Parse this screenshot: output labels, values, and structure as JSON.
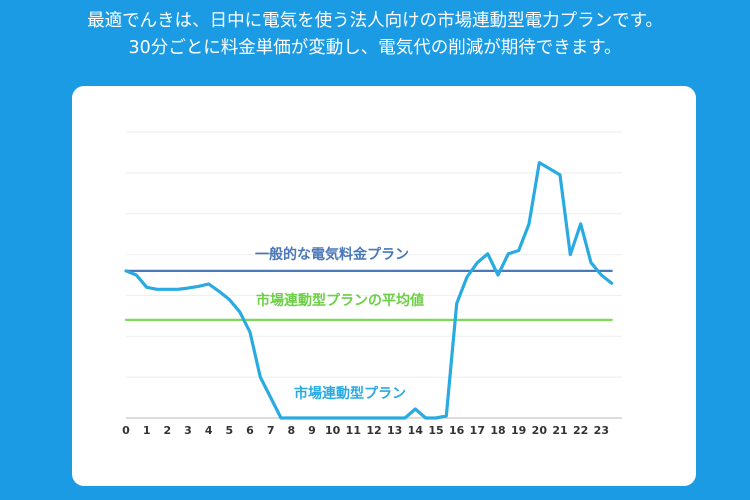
{
  "headline": {
    "line1": "最適でんきは、日中に電気を使う法人向けの市場連動型電力プランです。",
    "line2": "30分ごとに料金単価が変動し、電気代の削減が期待できます。"
  },
  "colors": {
    "background": "#1b9be3",
    "card": "#ffffff",
    "market_line": "#29abe2",
    "flat_rate_line": "#4a78b8",
    "average_line": "#7ed957",
    "grid": "#eeeeee",
    "axis": "#c8c8c8"
  },
  "chart_data": {
    "type": "line",
    "xlim": [
      0,
      24
    ],
    "ylim": [
      0,
      7
    ],
    "ticks": [
      "0",
      "1",
      "2",
      "3",
      "4",
      "5",
      "6",
      "7",
      "8",
      "9",
      "10",
      "11",
      "12",
      "13",
      "14",
      "15",
      "16",
      "17",
      "18",
      "19",
      "20",
      "21",
      "22",
      "23"
    ],
    "grid": true,
    "y_tick_labels_shown": false,
    "series": [
      {
        "name": "市場連動型プラン",
        "role": "market",
        "x": [
          0,
          0.5,
          1,
          1.5,
          2,
          2.5,
          3,
          3.5,
          4,
          4.5,
          5,
          5.5,
          6,
          6.5,
          7,
          7.5,
          8,
          8.5,
          9,
          9.5,
          10,
          10.5,
          11,
          11.5,
          12,
          12.5,
          13,
          13.5,
          14,
          14.5,
          15,
          15.5,
          16,
          16.5,
          17,
          17.5,
          18,
          18.5,
          19,
          19.5,
          20,
          20.5,
          21,
          21.5,
          22,
          22.5,
          23,
          23.5
        ],
        "y": [
          3.6,
          3.5,
          3.2,
          3.15,
          3.15,
          3.15,
          3.18,
          3.22,
          3.28,
          3.1,
          2.9,
          2.6,
          2.1,
          1.0,
          0.5,
          0.0,
          0.0,
          0.0,
          0.0,
          0.0,
          0.0,
          0.0,
          0.0,
          0.0,
          0.0,
          0.0,
          0.0,
          0.0,
          0.22,
          0.0,
          0.0,
          0.05,
          2.8,
          3.45,
          3.8,
          4.02,
          3.5,
          4.02,
          4.1,
          4.75,
          6.25,
          6.1,
          5.95,
          4.0,
          4.75,
          3.8,
          3.5,
          3.3
        ]
      },
      {
        "name": "一般的な電気料金プラン",
        "role": "flat_rate",
        "x": [
          0,
          23.5
        ],
        "y": [
          3.6,
          3.6
        ]
      },
      {
        "name": "市場連動型プランの平均値",
        "role": "average",
        "x": [
          0,
          23.5
        ],
        "y": [
          2.4,
          2.4
        ]
      }
    ]
  }
}
